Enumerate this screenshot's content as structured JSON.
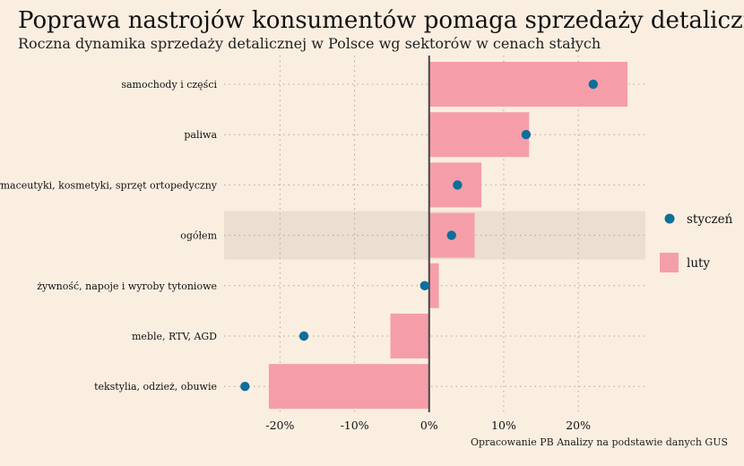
{
  "chart_data": {
    "type": "bar",
    "title": "Poprawa nastrojów konsumentów pomaga sprzedaży detalicznej",
    "subtitle": "Roczna dynamika sprzedaży detalicznej w Polsce wg sektorów w cenach stałych",
    "source": "Opracowanie PB Analizy na podstawie danych GUS",
    "categories": [
      "samochody i części",
      "paliwa",
      "farmaceutyki, kosmetyki, sprzęt ortopedyczny",
      "ogółem",
      "żywność, napoje i wyroby tytoniowe",
      "meble, RTV, AGD",
      "tekstylia, odzież, obuwie"
    ],
    "highlighted_category": "ogółem",
    "series": [
      {
        "name": "luty",
        "mark": "bar",
        "color": "#f59eaa",
        "values": [
          26.6,
          13.4,
          7.0,
          6.1,
          1.3,
          -5.2,
          -21.5
        ]
      },
      {
        "name": "styczeń",
        "mark": "point",
        "color": "#0d6f9a",
        "values": [
          22.0,
          13.0,
          3.8,
          3.0,
          -0.6,
          -16.8,
          -24.7
        ]
      }
    ],
    "xlim": [
      -27.5,
      29
    ],
    "xticks": [
      -20,
      -10,
      0,
      10,
      20
    ],
    "xtick_labels": [
      "-20%",
      "-10%",
      "0%",
      "10%",
      "20%"
    ],
    "grid": true,
    "legend_position": "right"
  },
  "colors": {
    "background": "#faeee1",
    "highlight_band": "#ebdfd1",
    "zero_line": "#444444",
    "grid": "#b5a79a"
  }
}
